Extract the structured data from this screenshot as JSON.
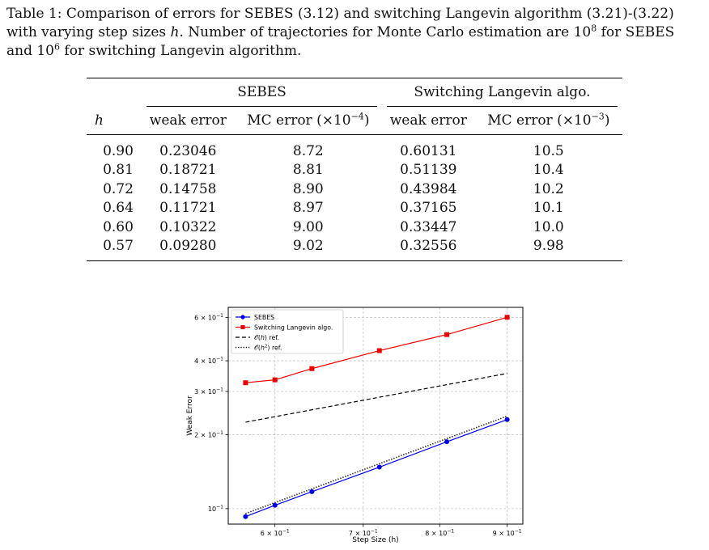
{
  "caption": {
    "text_part1": "Table 1: Comparison of errors for SEBES (3.12) and switching Langevin algorithm (3.21)-(3.22) with varying step sizes ",
    "h_symbol": "h",
    "text_part2": ". Number of trajectories for Monte Carlo estimation are 10",
    "exp1": "8",
    "text_part3": " for SEBES and 10",
    "exp2": "6",
    "text_part4": " for switching Langevin algorithm."
  },
  "table": {
    "col_h": "h",
    "group1": "SEBES",
    "group2": "Switching Langevin algo.",
    "sub_weak": "weak error",
    "sub_mc_prefix": "MC error (×10",
    "mc1_exp": "−4",
    "mc2_exp": "−3",
    "sub_mc_suffix": ")",
    "rows": [
      {
        "h": "0.90",
        "sebes_weak": "0.23046",
        "sebes_mc": "8.72",
        "sl_weak": "0.60131",
        "sl_mc": "10.5"
      },
      {
        "h": "0.81",
        "sebes_weak": "0.18721",
        "sebes_mc": "8.81",
        "sl_weak": "0.51139",
        "sl_mc": "10.4"
      },
      {
        "h": "0.72",
        "sebes_weak": "0.14758",
        "sebes_mc": "8.90",
        "sl_weak": "0.43984",
        "sl_mc": "10.2"
      },
      {
        "h": "0.64",
        "sebes_weak": "0.11721",
        "sebes_mc": "8.97",
        "sl_weak": "0.37165",
        "sl_mc": "10.1"
      },
      {
        "h": "0.60",
        "sebes_weak": "0.10322",
        "sebes_mc": "9.00",
        "sl_weak": "0.33447",
        "sl_mc": "10.0"
      },
      {
        "h": "0.57",
        "sebes_weak": "0.09280",
        "sebes_mc": "9.02",
        "sl_weak": "0.32556",
        "sl_mc": "9.98"
      }
    ]
  },
  "chart_data": {
    "type": "line",
    "title": "",
    "xlabel": "Step Size (h)",
    "ylabel": "Weak Error",
    "xscale": "log",
    "yscale": "log",
    "xlim": [
      0.553,
      0.925
    ],
    "ylim": [
      0.0865,
      0.66
    ],
    "grid": true,
    "legend_position": "top-left",
    "x_ticks": [
      {
        "value": 0.6,
        "mantissa": "6 × 10",
        "exp": "−1"
      },
      {
        "value": 0.7,
        "mantissa": "7 × 10",
        "exp": "−1"
      },
      {
        "value": 0.8,
        "mantissa": "8 × 10",
        "exp": "−1"
      },
      {
        "value": 0.9,
        "mantissa": "9 × 10",
        "exp": "−1"
      }
    ],
    "y_ticks": [
      {
        "value": 0.1,
        "mantissa": "10",
        "exp": "−1"
      },
      {
        "value": 0.2,
        "mantissa": "2 × 10",
        "exp": "−1"
      },
      {
        "value": 0.3,
        "mantissa": "3 × 10",
        "exp": "−1"
      },
      {
        "value": 0.4,
        "mantissa": "4 × 10",
        "exp": "−1"
      },
      {
        "value": 0.6,
        "mantissa": "6 × 10",
        "exp": "−1"
      }
    ],
    "series": [
      {
        "name": "SEBES",
        "color": "#0000ee",
        "marker": "circle",
        "dash": "solid",
        "x": [
          0.57,
          0.6,
          0.64,
          0.72,
          0.81,
          0.9
        ],
        "y": [
          0.0928,
          0.10322,
          0.11721,
          0.14758,
          0.18721,
          0.23046
        ]
      },
      {
        "name": "Switching Langevin algo.",
        "color": "#ee0000",
        "marker": "square",
        "dash": "solid",
        "x": [
          0.57,
          0.6,
          0.64,
          0.72,
          0.81,
          0.9
        ],
        "y": [
          0.32556,
          0.33447,
          0.37165,
          0.43984,
          0.51139,
          0.60131
        ]
      },
      {
        "name_prefix": "𝒪(",
        "name_var": "h",
        "name_suffix": ") ref.",
        "color": "#000000",
        "marker": "none",
        "dash": "dashed",
        "x": [
          0.57,
          0.9
        ],
        "y": [
          0.225,
          0.3553
        ]
      },
      {
        "name_prefix": "𝒪(",
        "name_var": "h",
        "name_exp": "2",
        "name_suffix": ") ref.",
        "color": "#000000",
        "marker": "none",
        "dash": "dotted",
        "x": [
          0.57,
          0.9
        ],
        "y": [
          0.0955,
          0.238
        ]
      }
    ]
  }
}
